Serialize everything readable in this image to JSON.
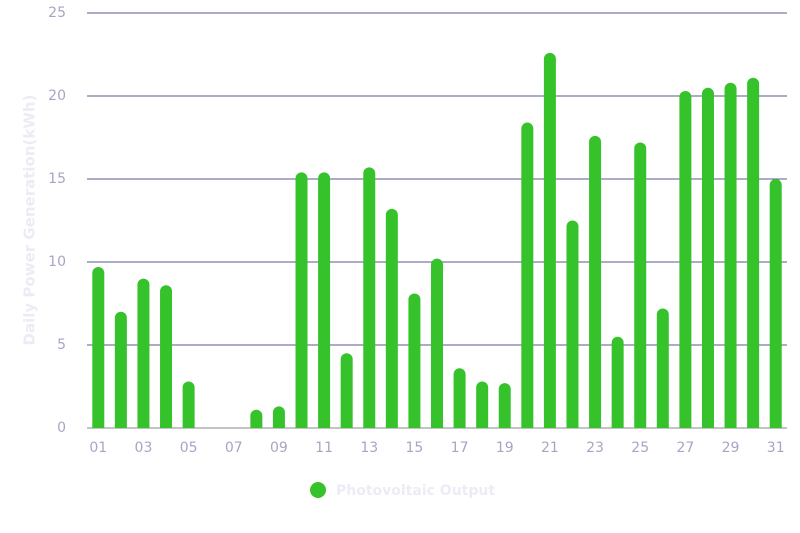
{
  "chart_data": {
    "type": "bar",
    "y_label": "Daily Power Generation(kWh)",
    "categories": [
      "01",
      null,
      "03",
      null,
      "05",
      null,
      "07",
      null,
      "09",
      null,
      "11",
      null,
      "13",
      null,
      "15",
      null,
      "17",
      null,
      "19",
      null,
      "21",
      null,
      "23",
      null,
      "25",
      null,
      "27",
      null,
      "29",
      null,
      "31"
    ],
    "series": [
      {
        "name": "Photovoltaic Output",
        "color": "#36c22a",
        "values": [
          9.7,
          7.0,
          9.0,
          8.6,
          2.8,
          0,
          0,
          1.1,
          1.3,
          15.4,
          15.4,
          4.5,
          15.7,
          13.2,
          8.1,
          10.2,
          3.6,
          2.8,
          2.7,
          18.4,
          22.6,
          12.5,
          17.6,
          5.5,
          17.2,
          7.2,
          20.3,
          20.5,
          20.8,
          21.1,
          15.0
        ]
      }
    ],
    "ylim": [
      0,
      25
    ],
    "yticks": [
      0,
      5,
      10,
      15,
      20,
      25
    ],
    "grid": true
  }
}
